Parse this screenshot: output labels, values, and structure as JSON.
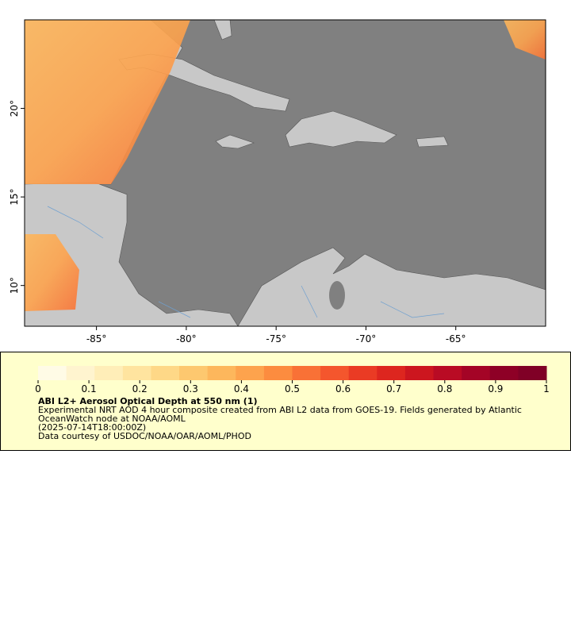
{
  "chart_data": {
    "type": "map",
    "xlim": [
      -89,
      -60
    ],
    "ylim": [
      7.7,
      25
    ],
    "xticks": [
      {
        "value": -85,
        "label": "-85°"
      },
      {
        "value": -80,
        "label": "-80°"
      },
      {
        "value": -75,
        "label": "-75°"
      },
      {
        "value": -70,
        "label": "-70°"
      },
      {
        "value": -65,
        "label": "-65°"
      }
    ],
    "yticks": [
      {
        "value": 10,
        "label": "10°"
      },
      {
        "value": 15,
        "label": "15°"
      },
      {
        "value": 20,
        "label": "20°"
      }
    ],
    "colorbar": {
      "lim": [
        0,
        1
      ],
      "ticks": [
        0,
        0.1,
        0.2,
        0.3,
        0.4,
        0.5,
        0.6,
        0.7,
        0.8,
        0.9,
        1
      ],
      "colors": [
        "#fffbe6",
        "#fff4cf",
        "#ffeeb8",
        "#ffe49f",
        "#fed887",
        "#fdc86f",
        "#fdb75c",
        "#fda34d",
        "#fc8c3f",
        "#f97136",
        "#f4562d",
        "#ea3b24",
        "#dd261f",
        "#cc161f",
        "#b90b24",
        "#a40426",
        "#8e0026",
        "#800026"
      ]
    },
    "title": "ABI L2+ Aerosol Optical Depth at 550 nm (1)",
    "notes": [
      "Experimental NRT AOD 4 hour composite created from ABI L2 data from GOES-19. Fields generated by Atlantic OceanWatch node at NOAA/AOML",
      "(2025-07-14T18:00:00Z)",
      "Data courtesy of USDOC/NOAA/OAR/AOML/PHOD"
    ]
  }
}
